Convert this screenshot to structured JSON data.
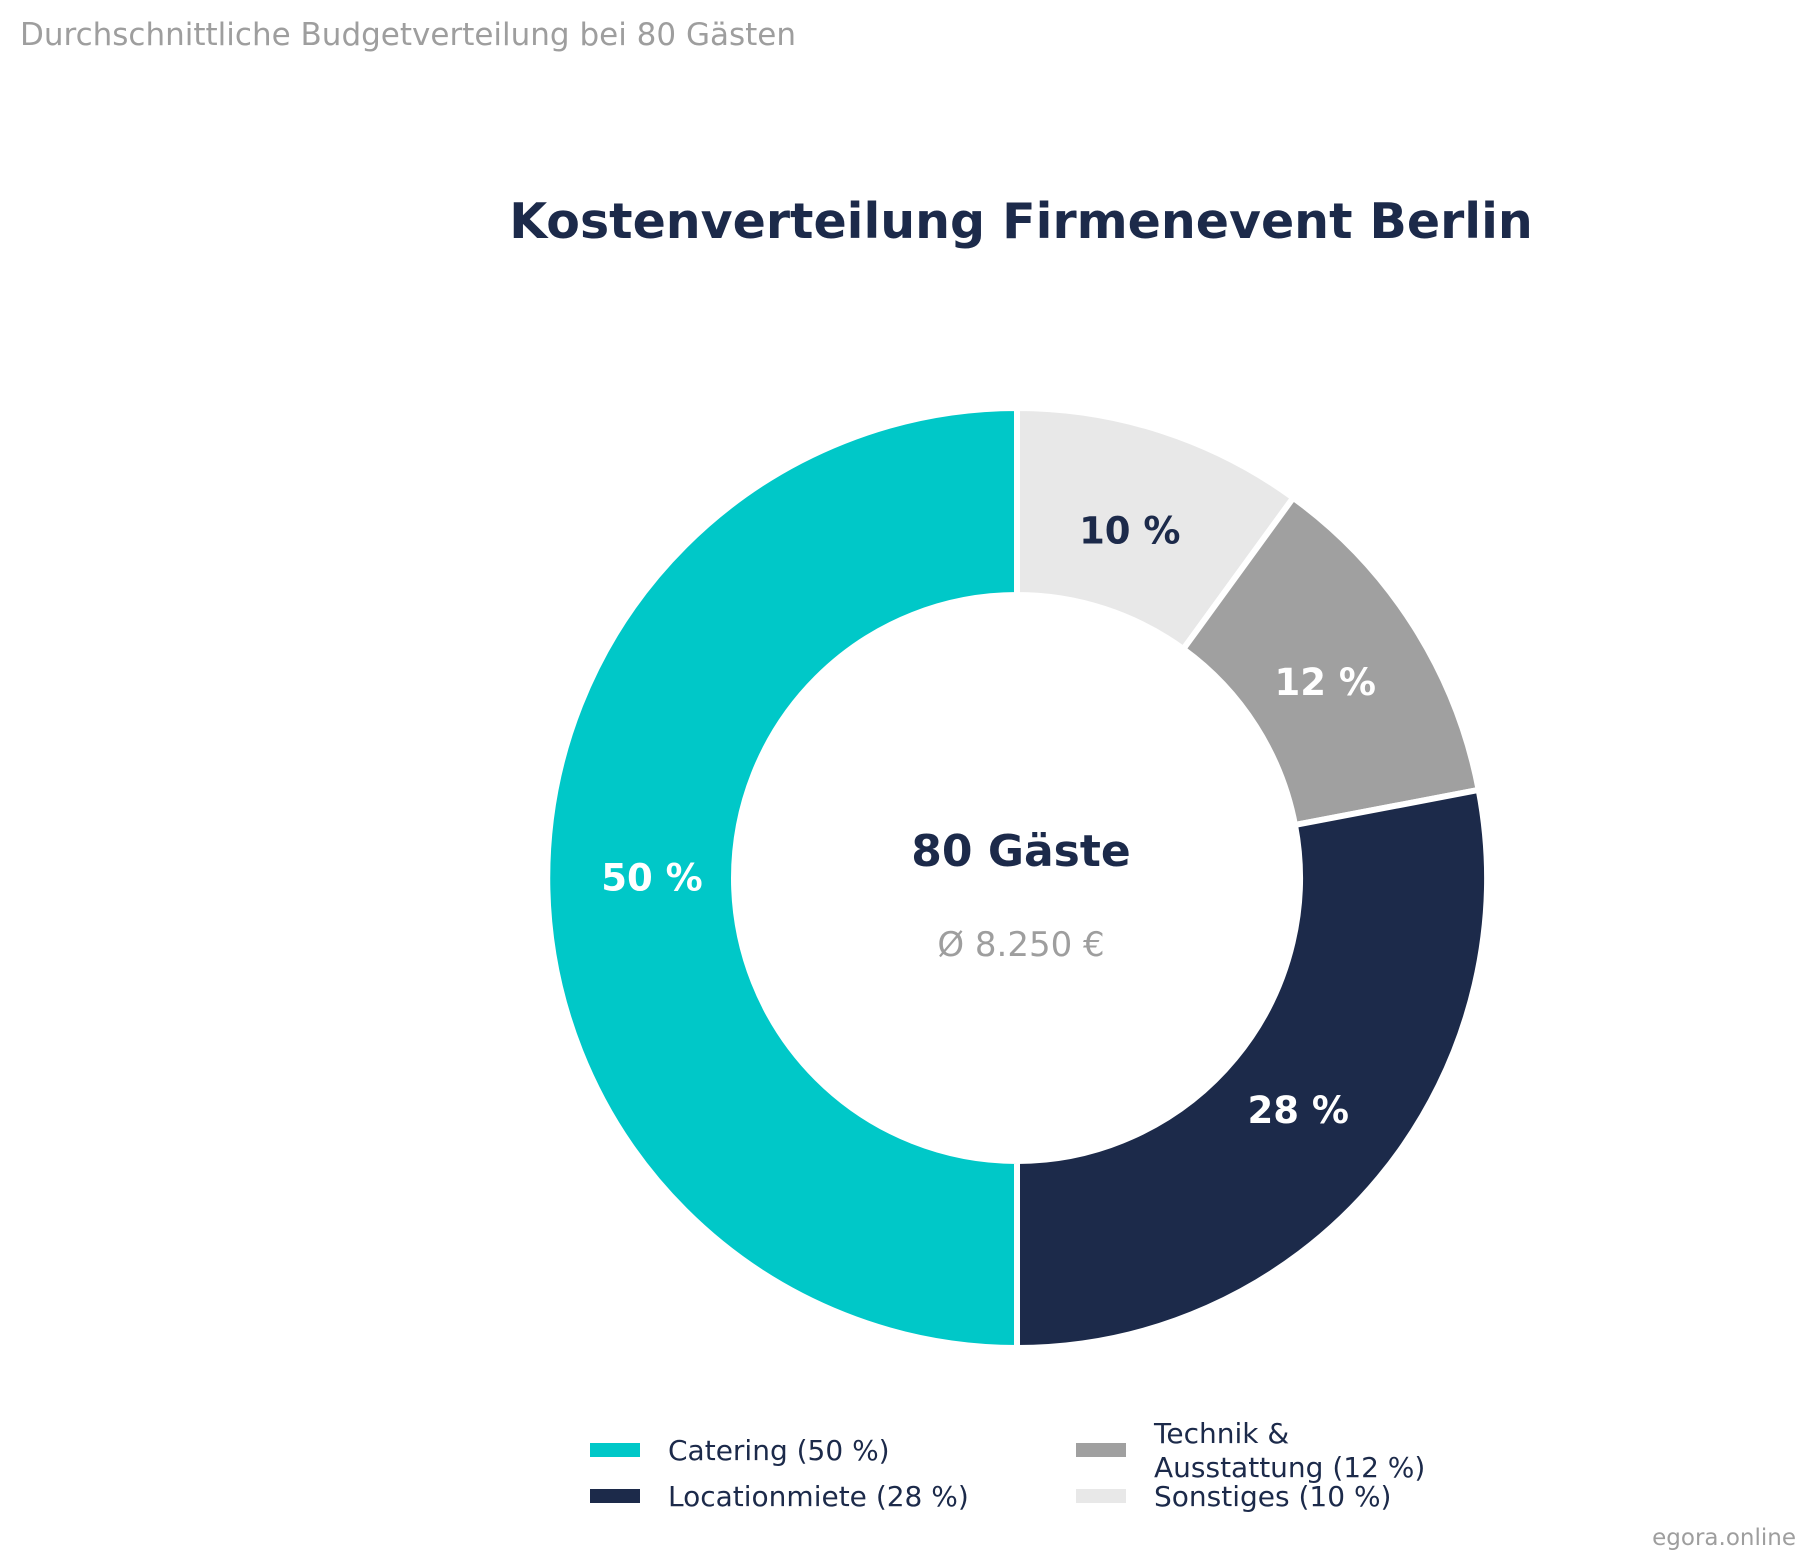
{
  "chart_data": {
    "type": "pie",
    "subtitle": "Durchschnittliche Budgetverteilung bei 80 Gästen",
    "title": "Kostenverteilung Firmenevent Berlin",
    "center": {
      "title": "80 Gäste",
      "subtitle": "Ø 8.250 €"
    },
    "slices": [
      {
        "name": "Sonstiges",
        "value": 10,
        "label": "10 %",
        "legend": [
          "Sonstiges  (10 %)"
        ],
        "color": "#e8e8e8",
        "label_color": "#1c2a4a"
      },
      {
        "name": "Technik & Ausstattung",
        "value": 12,
        "label": "12 %",
        "legend": [
          "Technik &",
          "Ausstattung  (12 %)"
        ],
        "color": "#a0a0a0",
        "label_color": "#ffffff"
      },
      {
        "name": "Locationmiete",
        "value": 28,
        "label": "28 %",
        "legend": [
          "Locationmiete  (28 %)"
        ],
        "color": "#1c2a4a",
        "label_color": "#ffffff"
      },
      {
        "name": "Catering",
        "value": 50,
        "label": "50 %",
        "legend": [
          "Catering  (50 %)"
        ],
        "color": "#00c8c8",
        "label_color": "#ffffff"
      }
    ],
    "legend_order": [
      "Catering",
      "Locationmiete",
      "Technik & Ausstattung",
      "Sonstiges"
    ],
    "legend_position": "bottom"
  },
  "watermark": "egora.online"
}
